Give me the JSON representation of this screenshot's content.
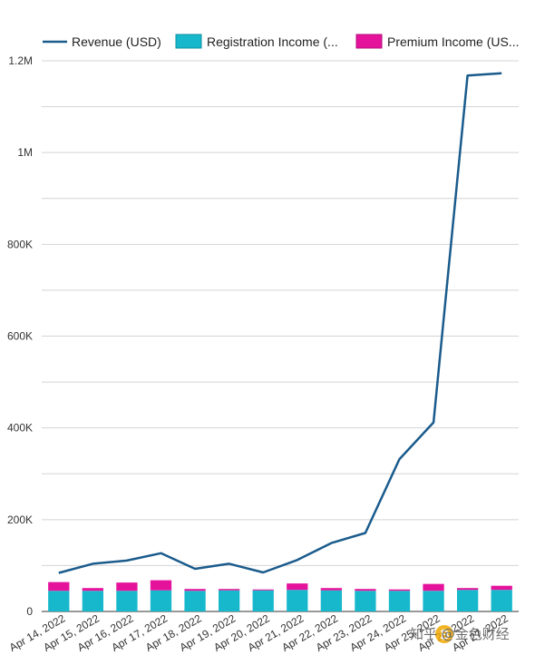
{
  "chart_data": {
    "type": "bar+line",
    "categories": [
      "Apr 14, 2022",
      "Apr 15, 2022",
      "Apr 16, 2022",
      "Apr 17, 2022",
      "Apr 18, 2022",
      "Apr 19, 2022",
      "Apr 20, 2022",
      "Apr 21, 2022",
      "Apr 22, 2022",
      "Apr 23, 2022",
      "Apr 24, 2022",
      "Apr 25, 2022",
      "Apr 26, 2022",
      "Apr 27, 2022"
    ],
    "y_ticks": [
      0,
      200000,
      400000,
      600000,
      800000,
      1000000,
      1200000
    ],
    "y_tick_labels": [
      "0",
      "200K",
      "400K",
      "600K",
      "800K",
      "1M",
      "1.2M"
    ],
    "ylim": [
      0,
      1200000
    ],
    "legend_position": "top",
    "grid": true,
    "series": [
      {
        "name": "Revenue (USD)",
        "type": "line",
        "color": "#1a5b8c",
        "values": [
          84000,
          104000,
          111000,
          127000,
          93000,
          104000,
          85000,
          112000,
          149000,
          171000,
          332000,
          412000,
          1168000,
          1173000
        ]
      },
      {
        "name": "Registration Income (...",
        "type": "bar",
        "color": "#17b8cc",
        "values": [
          45000,
          45000,
          45000,
          46000,
          45000,
          46000,
          46000,
          47000,
          46000,
          45000,
          45000,
          45000,
          47000,
          47000
        ]
      },
      {
        "name": "Premium Income (US...",
        "type": "bar",
        "color": "#e5139b",
        "values": [
          19000,
          6000,
          18000,
          22000,
          4000,
          3000,
          2000,
          14000,
          5000,
          4000,
          3000,
          15000,
          4000,
          9000
        ]
      }
    ],
    "x_tick_labels": [
      "Apr 14, 2022",
      "Apr 15, 2022",
      "Apr 16, 2022",
      "Apr 17, 2022",
      "Apr 18, 2022",
      "Apr 19, 2022",
      "Apr 20, 2022",
      "Apr 21, 2022",
      "Apr 22, 2022",
      "Apr 23, 2022",
      "Apr 24, 2022",
      "Apr 25, 2022",
      "Apr 26, 2022",
      "Apr 27, 2022"
    ]
  },
  "legend": {
    "items": [
      "Revenue (USD)",
      "Registration Income (...",
      "Premium Income (US..."
    ]
  },
  "watermark": {
    "text": "知乎 @金色财经",
    "icon": "bitcoin-icon"
  }
}
